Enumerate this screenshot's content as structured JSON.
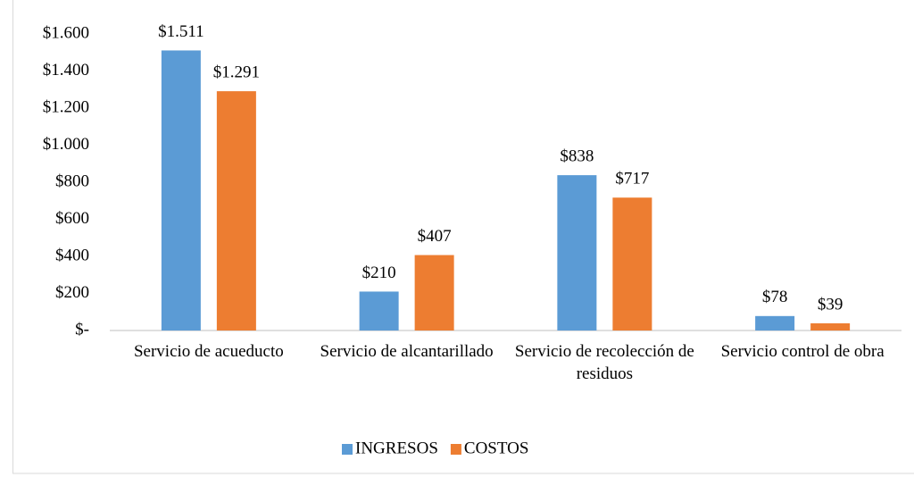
{
  "chart_data": {
    "type": "bar",
    "categories": [
      "Servicio de acueducto",
      "Servicio de alcantarillado",
      "Servicio de recolección de residuos",
      "Servicio control de obra"
    ],
    "series": [
      {
        "name": "INGRESOS",
        "color": "#5b9bd5",
        "values": [
          1511,
          210,
          838,
          78
        ],
        "value_labels": [
          "$1.511",
          "$210",
          "$838",
          "$78"
        ]
      },
      {
        "name": "COSTOS",
        "color": "#ed7d31",
        "values": [
          1291,
          407,
          717,
          39
        ],
        "value_labels": [
          "$1.291",
          "$407",
          "$717",
          "$39"
        ]
      }
    ],
    "ylim": [
      0,
      1600
    ],
    "yticks": [
      {
        "value": 0,
        "label": "$-"
      },
      {
        "value": 200,
        "label": "$200"
      },
      {
        "value": 400,
        "label": "$400"
      },
      {
        "value": 600,
        "label": "$600"
      },
      {
        "value": 800,
        "label": "$800"
      },
      {
        "value": 1000,
        "label": "$1.000"
      },
      {
        "value": 1200,
        "label": "$1.200"
      },
      {
        "value": 1400,
        "label": "$1.400"
      },
      {
        "value": 1600,
        "label": "$1.600"
      }
    ],
    "grid": false,
    "legend": "bottom"
  }
}
